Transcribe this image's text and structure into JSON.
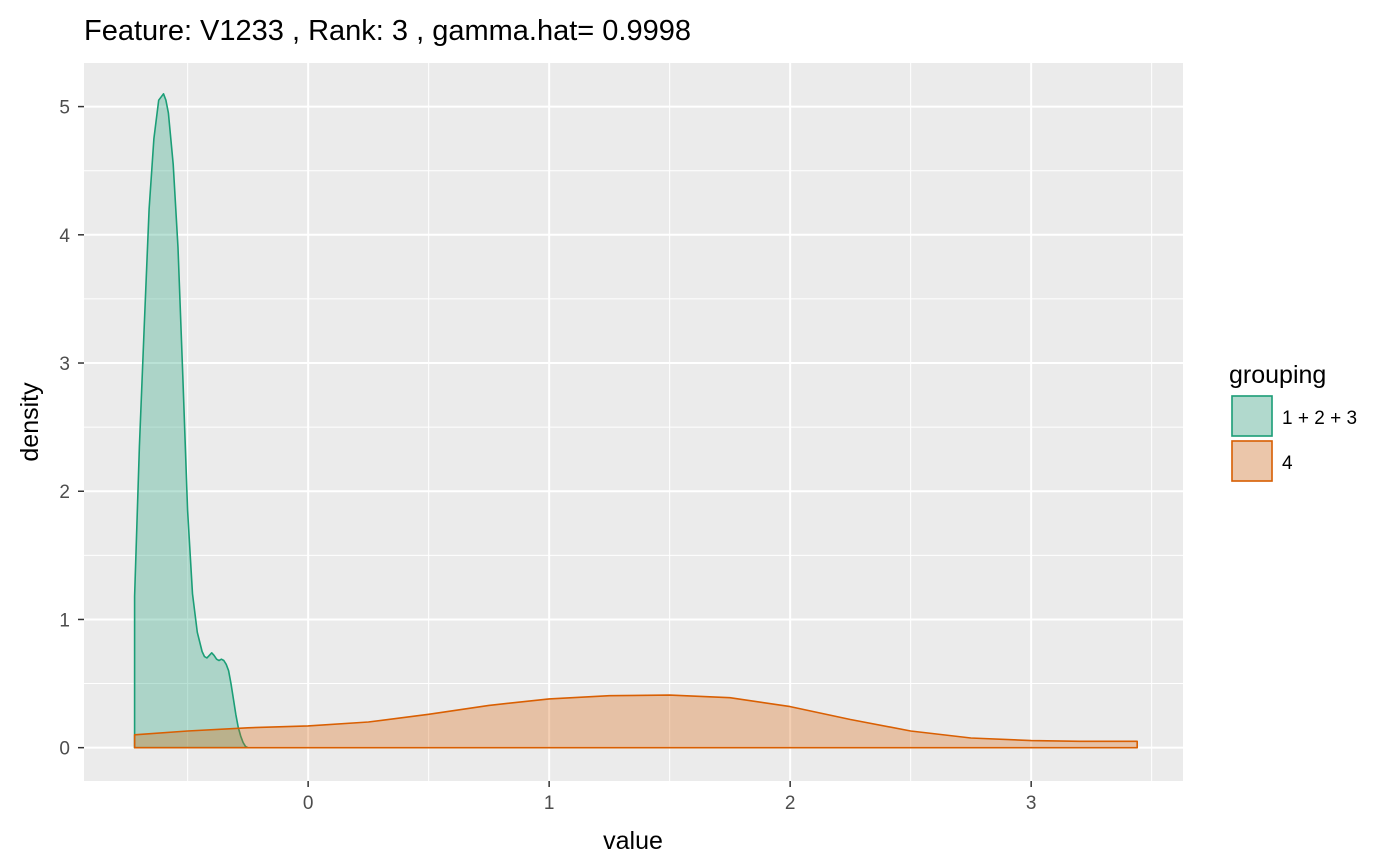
{
  "chart_data": {
    "type": "area",
    "title": "Feature: V1233 , Rank: 3 , gamma.hat= 0.9998",
    "xlabel": "value",
    "ylabel": "density",
    "xlim": [
      -0.93,
      3.63
    ],
    "ylim": [
      -0.26,
      5.34
    ],
    "x_ticks": [
      0,
      1,
      2,
      3
    ],
    "x_tick_labels": [
      "0",
      "1",
      "2",
      "3"
    ],
    "y_ticks": [
      0,
      1,
      2,
      3,
      4,
      5
    ],
    "y_tick_labels": [
      "0",
      "1",
      "2",
      "3",
      "4",
      "5"
    ],
    "grid": true,
    "legend": {
      "title": "grouping",
      "position": "right"
    },
    "series": [
      {
        "name": "1 + 2 + 3",
        "color": "#1b9e77",
        "fill": "#1b9e77",
        "fill_opacity": 0.3,
        "x": [
          -0.72,
          -0.72,
          -0.7,
          -0.68,
          -0.66,
          -0.64,
          -0.62,
          -0.6,
          -0.59,
          -0.58,
          -0.56,
          -0.54,
          -0.52,
          -0.5,
          -0.48,
          -0.46,
          -0.44,
          -0.43,
          -0.42,
          -0.41,
          -0.4,
          -0.39,
          -0.38,
          -0.37,
          -0.36,
          -0.35,
          -0.34,
          -0.33,
          -0.32,
          -0.31,
          -0.3,
          -0.29,
          -0.28,
          -0.27,
          -0.26,
          -0.25
        ],
        "y": [
          0,
          1.18,
          2.35,
          3.3,
          4.2,
          4.75,
          5.05,
          5.1,
          5.05,
          4.95,
          4.55,
          3.9,
          2.9,
          1.85,
          1.2,
          0.9,
          0.75,
          0.71,
          0.7,
          0.72,
          0.74,
          0.72,
          0.69,
          0.68,
          0.69,
          0.68,
          0.65,
          0.6,
          0.5,
          0.38,
          0.26,
          0.16,
          0.09,
          0.04,
          0.01,
          0
        ]
      },
      {
        "name": "4",
        "color": "#d95f02",
        "fill": "#d95f02",
        "fill_opacity": 0.3,
        "x": [
          -0.72,
          -0.72,
          -0.5,
          -0.25,
          0,
          0.25,
          0.5,
          0.75,
          1.0,
          1.25,
          1.5,
          1.75,
          2.0,
          2.25,
          2.5,
          2.75,
          3.0,
          3.2,
          3.44,
          3.44
        ],
        "y": [
          0,
          0.1,
          0.13,
          0.155,
          0.17,
          0.2,
          0.26,
          0.33,
          0.38,
          0.405,
          0.41,
          0.39,
          0.32,
          0.22,
          0.13,
          0.075,
          0.055,
          0.05,
          0.05,
          0
        ]
      }
    ]
  }
}
